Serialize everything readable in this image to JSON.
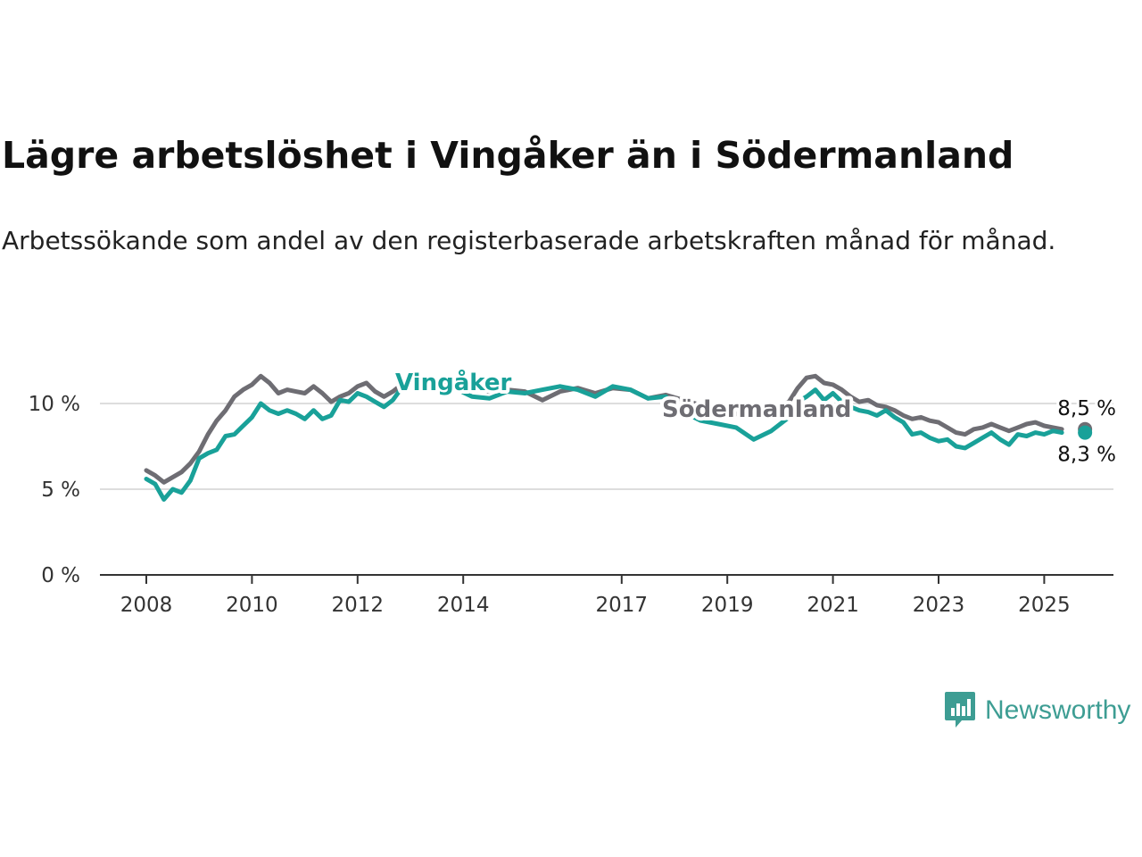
{
  "title": "Lägre arbetslöshet i Vingåker än i Södermanland",
  "subtitle": "Arbetssökande som andel av den registerbaserade arbetskraften månad för månad.",
  "brand": {
    "name": "Newsworthy",
    "color": "#3d9d93",
    "icon": "newsworthy-logo-icon"
  },
  "chart_data": {
    "type": "line",
    "x_ticks": [
      "2008",
      "2010",
      "2012",
      "2014",
      "2017",
      "2019",
      "2021",
      "2023",
      "2025"
    ],
    "y_ticks": [
      "0 %",
      "5 %",
      "10 %"
    ],
    "ylim": [
      0,
      12
    ],
    "grid": true,
    "series": [
      {
        "name": "Södermanland",
        "color": "#6e6d73",
        "end_label": "8,5 %",
        "points": [
          [
            "2008-01",
            6.1
          ],
          [
            "2008-03",
            5.8
          ],
          [
            "2008-05",
            5.4
          ],
          [
            "2008-07",
            5.7
          ],
          [
            "2008-09",
            6.0
          ],
          [
            "2008-11",
            6.5
          ],
          [
            "2009-01",
            7.2
          ],
          [
            "2009-03",
            8.2
          ],
          [
            "2009-05",
            9.0
          ],
          [
            "2009-07",
            9.6
          ],
          [
            "2009-09",
            10.4
          ],
          [
            "2009-11",
            10.8
          ],
          [
            "2010-01",
            11.1
          ],
          [
            "2010-03",
            11.6
          ],
          [
            "2010-05",
            11.2
          ],
          [
            "2010-07",
            10.6
          ],
          [
            "2010-09",
            10.8
          ],
          [
            "2010-11",
            10.7
          ],
          [
            "2011-01",
            10.6
          ],
          [
            "2011-03",
            11.0
          ],
          [
            "2011-05",
            10.6
          ],
          [
            "2011-07",
            10.1
          ],
          [
            "2011-09",
            10.4
          ],
          [
            "2011-11",
            10.6
          ],
          [
            "2012-01",
            11.0
          ],
          [
            "2012-03",
            11.2
          ],
          [
            "2012-05",
            10.7
          ],
          [
            "2012-07",
            10.4
          ],
          [
            "2012-09",
            10.7
          ],
          [
            "2012-11",
            11.1
          ],
          [
            "2013-03",
            11.4
          ],
          [
            "2013-07",
            11.2
          ],
          [
            "2013-11",
            11.0
          ],
          [
            "2014-03",
            10.8
          ],
          [
            "2014-07",
            10.7
          ],
          [
            "2014-11",
            10.8
          ],
          [
            "2015-03",
            10.7
          ],
          [
            "2015-07",
            10.2
          ],
          [
            "2015-11",
            10.7
          ],
          [
            "2016-03",
            10.9
          ],
          [
            "2016-07",
            10.6
          ],
          [
            "2016-11",
            10.9
          ],
          [
            "2017-03",
            10.8
          ],
          [
            "2017-07",
            10.3
          ],
          [
            "2017-11",
            10.5
          ],
          [
            "2018-03",
            10.2
          ],
          [
            "2018-07",
            9.9
          ],
          [
            "2018-11",
            9.6
          ],
          [
            "2019-03",
            9.4
          ],
          [
            "2019-07",
            9.2
          ],
          [
            "2019-11",
            9.5
          ],
          [
            "2020-03",
            10.1
          ],
          [
            "2020-05",
            10.9
          ],
          [
            "2020-07",
            11.5
          ],
          [
            "2020-09",
            11.6
          ],
          [
            "2020-11",
            11.2
          ],
          [
            "2021-01",
            11.1
          ],
          [
            "2021-03",
            10.8
          ],
          [
            "2021-05",
            10.4
          ],
          [
            "2021-07",
            10.1
          ],
          [
            "2021-09",
            10.2
          ],
          [
            "2021-11",
            9.9
          ],
          [
            "2022-01",
            9.8
          ],
          [
            "2022-03",
            9.6
          ],
          [
            "2022-05",
            9.3
          ],
          [
            "2022-07",
            9.1
          ],
          [
            "2022-09",
            9.2
          ],
          [
            "2022-11",
            9.0
          ],
          [
            "2023-01",
            8.9
          ],
          [
            "2023-03",
            8.6
          ],
          [
            "2023-05",
            8.3
          ],
          [
            "2023-07",
            8.2
          ],
          [
            "2023-09",
            8.5
          ],
          [
            "2023-11",
            8.6
          ],
          [
            "2024-01",
            8.8
          ],
          [
            "2024-03",
            8.6
          ],
          [
            "2024-05",
            8.4
          ],
          [
            "2024-07",
            8.6
          ],
          [
            "2024-09",
            8.8
          ],
          [
            "2024-11",
            8.9
          ],
          [
            "2025-01",
            8.7
          ],
          [
            "2025-03",
            8.6
          ],
          [
            "2025-05",
            8.5
          ]
        ]
      },
      {
        "name": "Vingåker",
        "color": "#19a199",
        "end_label": "8,3 %",
        "points": [
          [
            "2008-01",
            5.6
          ],
          [
            "2008-03",
            5.3
          ],
          [
            "2008-05",
            4.4
          ],
          [
            "2008-07",
            5.0
          ],
          [
            "2008-09",
            4.8
          ],
          [
            "2008-11",
            5.5
          ],
          [
            "2009-01",
            6.8
          ],
          [
            "2009-03",
            7.1
          ],
          [
            "2009-05",
            7.3
          ],
          [
            "2009-07",
            8.1
          ],
          [
            "2009-09",
            8.2
          ],
          [
            "2009-11",
            8.7
          ],
          [
            "2010-01",
            9.2
          ],
          [
            "2010-03",
            10.0
          ],
          [
            "2010-05",
            9.6
          ],
          [
            "2010-07",
            9.4
          ],
          [
            "2010-09",
            9.6
          ],
          [
            "2010-11",
            9.4
          ],
          [
            "2011-01",
            9.1
          ],
          [
            "2011-03",
            9.6
          ],
          [
            "2011-05",
            9.1
          ],
          [
            "2011-07",
            9.3
          ],
          [
            "2011-09",
            10.2
          ],
          [
            "2011-11",
            10.1
          ],
          [
            "2012-01",
            10.6
          ],
          [
            "2012-03",
            10.4
          ],
          [
            "2012-05",
            10.1
          ],
          [
            "2012-07",
            9.8
          ],
          [
            "2012-09",
            10.2
          ],
          [
            "2012-11",
            10.9
          ],
          [
            "2013-03",
            11.5
          ],
          [
            "2013-07",
            11.3
          ],
          [
            "2013-11",
            10.9
          ],
          [
            "2014-03",
            10.4
          ],
          [
            "2014-07",
            10.3
          ],
          [
            "2014-11",
            10.7
          ],
          [
            "2015-03",
            10.6
          ],
          [
            "2015-07",
            10.8
          ],
          [
            "2015-11",
            11.0
          ],
          [
            "2016-03",
            10.8
          ],
          [
            "2016-07",
            10.4
          ],
          [
            "2016-11",
            11.0
          ],
          [
            "2017-03",
            10.8
          ],
          [
            "2017-07",
            10.3
          ],
          [
            "2017-11",
            10.4
          ],
          [
            "2018-03",
            9.5
          ],
          [
            "2018-07",
            9.0
          ],
          [
            "2018-11",
            8.8
          ],
          [
            "2019-03",
            8.6
          ],
          [
            "2019-07",
            7.9
          ],
          [
            "2019-11",
            8.4
          ],
          [
            "2020-03",
            9.2
          ],
          [
            "2020-05",
            10.1
          ],
          [
            "2020-07",
            10.4
          ],
          [
            "2020-09",
            10.8
          ],
          [
            "2020-11",
            10.2
          ],
          [
            "2021-01",
            10.6
          ],
          [
            "2021-03",
            10.1
          ],
          [
            "2021-05",
            9.8
          ],
          [
            "2021-07",
            9.6
          ],
          [
            "2021-09",
            9.5
          ],
          [
            "2021-11",
            9.3
          ],
          [
            "2022-01",
            9.6
          ],
          [
            "2022-03",
            9.2
          ],
          [
            "2022-05",
            8.9
          ],
          [
            "2022-07",
            8.2
          ],
          [
            "2022-09",
            8.3
          ],
          [
            "2022-11",
            8.0
          ],
          [
            "2023-01",
            7.8
          ],
          [
            "2023-03",
            7.9
          ],
          [
            "2023-05",
            7.5
          ],
          [
            "2023-07",
            7.4
          ],
          [
            "2023-09",
            7.7
          ],
          [
            "2023-11",
            8.0
          ],
          [
            "2024-01",
            8.3
          ],
          [
            "2024-03",
            7.9
          ],
          [
            "2024-05",
            7.6
          ],
          [
            "2024-07",
            8.2
          ],
          [
            "2024-09",
            8.1
          ],
          [
            "2024-11",
            8.3
          ],
          [
            "2025-01",
            8.2
          ],
          [
            "2025-03",
            8.4
          ],
          [
            "2025-05",
            8.3
          ]
        ]
      }
    ]
  }
}
